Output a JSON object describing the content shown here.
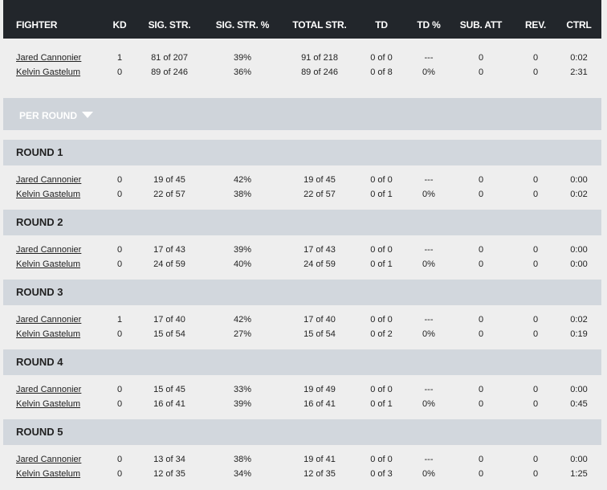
{
  "columns": [
    "FIGHTER",
    "KD",
    "SIG. STR.",
    "SIG. STR. %",
    "TOTAL STR.",
    "TD",
    "TD %",
    "SUB. ATT",
    "REV.",
    "CTRL"
  ],
  "totals": [
    {
      "fighter": "Jared Cannonier",
      "kd": "1",
      "sig_str": "81 of 207",
      "sig_pct": "39%",
      "total_str": "91 of 218",
      "td": "0 of 0",
      "td_pct": "---",
      "sub_att": "0",
      "rev": "0",
      "ctrl": "0:02"
    },
    {
      "fighter": "Kelvin Gastelum",
      "kd": "0",
      "sig_str": "89 of 246",
      "sig_pct": "36%",
      "total_str": "89 of 246",
      "td": "0 of 8",
      "td_pct": "0%",
      "sub_att": "0",
      "rev": "0",
      "ctrl": "2:31"
    }
  ],
  "per_round_label": "PER ROUND",
  "rounds": [
    {
      "title": "ROUND 1",
      "rows": [
        {
          "fighter": "Jared Cannonier",
          "kd": "0",
          "sig_str": "19 of 45",
          "sig_pct": "42%",
          "total_str": "19 of 45",
          "td": "0 of 0",
          "td_pct": "---",
          "sub_att": "0",
          "rev": "0",
          "ctrl": "0:00"
        },
        {
          "fighter": "Kelvin Gastelum",
          "kd": "0",
          "sig_str": "22 of 57",
          "sig_pct": "38%",
          "total_str": "22 of 57",
          "td": "0 of 1",
          "td_pct": "0%",
          "sub_att": "0",
          "rev": "0",
          "ctrl": "0:02"
        }
      ]
    },
    {
      "title": "ROUND 2",
      "rows": [
        {
          "fighter": "Jared Cannonier",
          "kd": "0",
          "sig_str": "17 of 43",
          "sig_pct": "39%",
          "total_str": "17 of 43",
          "td": "0 of 0",
          "td_pct": "---",
          "sub_att": "0",
          "rev": "0",
          "ctrl": "0:00"
        },
        {
          "fighter": "Kelvin Gastelum",
          "kd": "0",
          "sig_str": "24 of 59",
          "sig_pct": "40%",
          "total_str": "24 of 59",
          "td": "0 of 1",
          "td_pct": "0%",
          "sub_att": "0",
          "rev": "0",
          "ctrl": "0:00"
        }
      ]
    },
    {
      "title": "ROUND 3",
      "rows": [
        {
          "fighter": "Jared Cannonier",
          "kd": "1",
          "sig_str": "17 of 40",
          "sig_pct": "42%",
          "total_str": "17 of 40",
          "td": "0 of 0",
          "td_pct": "---",
          "sub_att": "0",
          "rev": "0",
          "ctrl": "0:02"
        },
        {
          "fighter": "Kelvin Gastelum",
          "kd": "0",
          "sig_str": "15 of 54",
          "sig_pct": "27%",
          "total_str": "15 of 54",
          "td": "0 of 2",
          "td_pct": "0%",
          "sub_att": "0",
          "rev": "0",
          "ctrl": "0:19"
        }
      ]
    },
    {
      "title": "ROUND 4",
      "rows": [
        {
          "fighter": "Jared Cannonier",
          "kd": "0",
          "sig_str": "15 of 45",
          "sig_pct": "33%",
          "total_str": "19 of 49",
          "td": "0 of 0",
          "td_pct": "---",
          "sub_att": "0",
          "rev": "0",
          "ctrl": "0:00"
        },
        {
          "fighter": "Kelvin Gastelum",
          "kd": "0",
          "sig_str": "16 of 41",
          "sig_pct": "39%",
          "total_str": "16 of 41",
          "td": "0 of 1",
          "td_pct": "0%",
          "sub_att": "0",
          "rev": "0",
          "ctrl": "0:45"
        }
      ]
    },
    {
      "title": "ROUND 5",
      "rows": [
        {
          "fighter": "Jared Cannonier",
          "kd": "0",
          "sig_str": "13 of 34",
          "sig_pct": "38%",
          "total_str": "19 of 41",
          "td": "0 of 0",
          "td_pct": "---",
          "sub_att": "0",
          "rev": "0",
          "ctrl": "0:00"
        },
        {
          "fighter": "Kelvin Gastelum",
          "kd": "0",
          "sig_str": "12 of 35",
          "sig_pct": "34%",
          "total_str": "12 of 35",
          "td": "0 of 3",
          "td_pct": "0%",
          "sub_att": "0",
          "rev": "0",
          "ctrl": "1:25"
        }
      ]
    }
  ],
  "colors": {
    "header_bg": "#22262b",
    "per_round_bg": "#cfd4da",
    "round_bar_bg": "#d2d7dd",
    "page_bg": "#eeeeee"
  },
  "icons": {
    "per_round_toggle": "caret-down-icon"
  }
}
